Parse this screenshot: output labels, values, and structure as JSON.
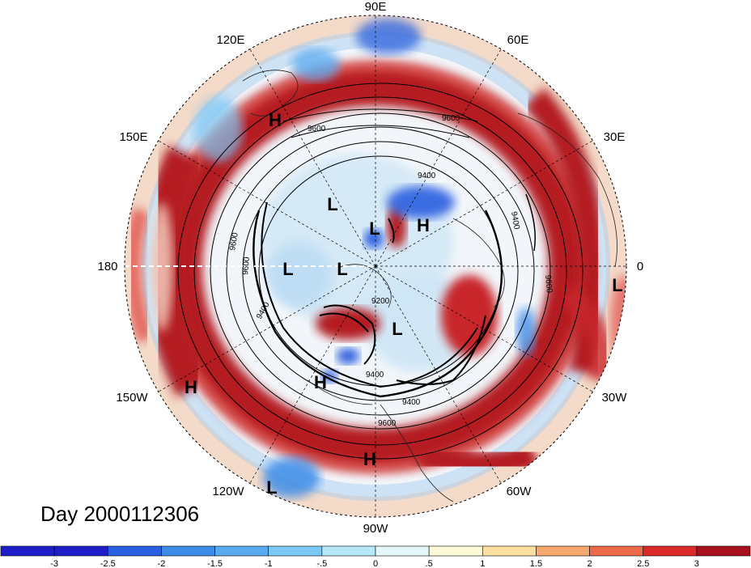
{
  "date_label": "Day 2000112306",
  "longitude_labels": [
    "90E",
    "60E",
    "30E",
    "0",
    "30W",
    "60W",
    "90W",
    "120W",
    "150W",
    "180",
    "150E",
    "120E"
  ],
  "pressure_centers": [
    "H",
    "L",
    "L",
    "H",
    "L",
    "L",
    "L",
    "L",
    "H",
    "H",
    "L",
    "H"
  ],
  "contour_labels": [
    "9600",
    "9400",
    "9200",
    "9600",
    "9600",
    "9600",
    "9400",
    "9400",
    "9400",
    "9600",
    "9600",
    "9400"
  ],
  "colorbar": {
    "ticks": [
      "-3",
      "-2.5",
      "-2",
      "-1.5",
      "-1",
      "-.5",
      "0",
      ".5",
      "1",
      "1.5",
      "2",
      "2.5",
      "3"
    ],
    "colors": [
      "#1e1ec8",
      "#2a5fe0",
      "#3c8ce8",
      "#5aaaf0",
      "#7cc8f5",
      "#b6e8fa",
      "#e4f8fc",
      "#fefad8",
      "#fde0a0",
      "#f5a86e",
      "#ec6a4a",
      "#dc2a2a",
      "#a8101e"
    ]
  },
  "colors": {
    "strong_positive": "#b41e23",
    "positive": "#e0504a",
    "negative": "#4a80e0",
    "neutral": "#f2f6fa",
    "contour": "#000000"
  }
}
